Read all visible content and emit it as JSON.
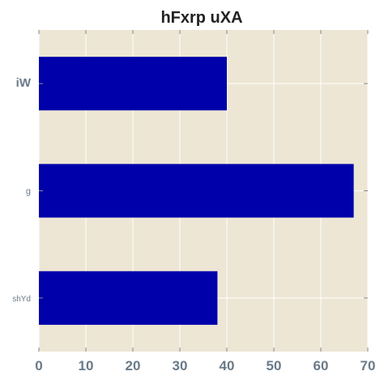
{
  "chart_data": {
    "type": "bar",
    "orientation": "horizontal",
    "title": "hFxrp uXA",
    "categories": [
      "iW",
      "g",
      "shYd"
    ],
    "values": [
      40,
      67,
      38
    ],
    "xlim": [
      0,
      70
    ],
    "xticks": [
      0,
      10,
      20,
      30,
      40,
      50,
      60,
      70
    ],
    "xlabel": "",
    "ylabel": "",
    "grid": true,
    "legend": "none",
    "colors": {
      "bar": "#0000aa",
      "plot_background": "#ede6d4",
      "grid": "#ffffff",
      "tick_label": "#6a7a88",
      "title": "#222222"
    }
  }
}
